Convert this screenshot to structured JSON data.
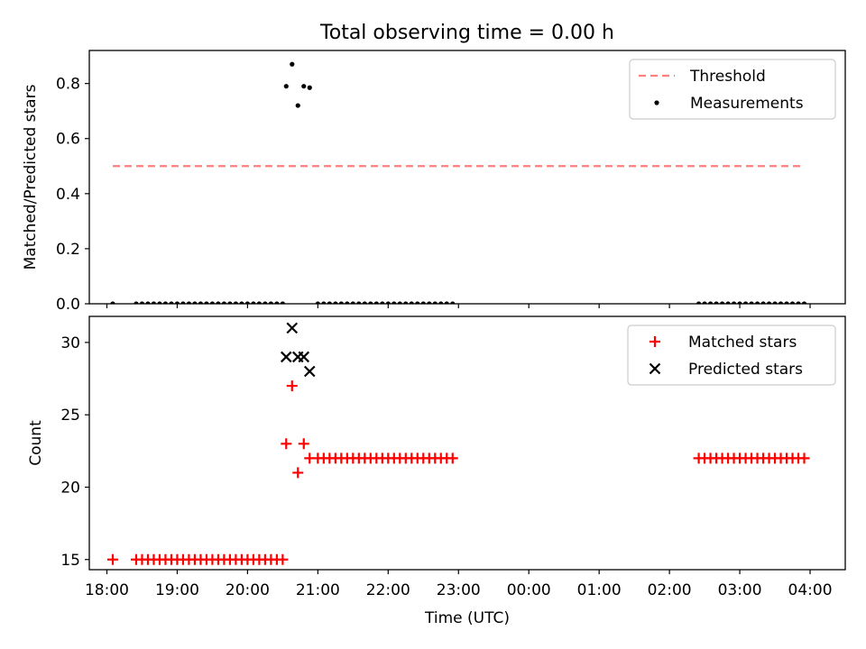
{
  "figure_title": "Total observing time = 0.00 h",
  "chart_data": [
    {
      "type": "scatter",
      "ylabel": "Matched/Predicted stars",
      "xlabel": "",
      "xlim": [
        "17:45",
        "04:30"
      ],
      "ylim": [
        0,
        0.92
      ],
      "yticks": [
        0.0,
        0.2,
        0.4,
        0.6,
        0.8
      ],
      "ytick_labels": [
        "0.0",
        "0.2",
        "0.4",
        "0.6",
        "0.8"
      ],
      "legend_position": "top-right",
      "threshold": {
        "name": "Threshold",
        "value": 0.5,
        "x_start": "18:05",
        "x_end": "03:55",
        "color": "#ff7f7f",
        "style": "dashed"
      },
      "series": [
        {
          "name": "Measurements",
          "color": "#000000",
          "marker": "dot",
          "points": [
            {
              "x": "18:05",
              "y": 0.0
            },
            {
              "x": "18:25",
              "y": 0.0
            },
            {
              "x": "18:30",
              "y": 0.0
            },
            {
              "x": "18:35",
              "y": 0.0
            },
            {
              "x": "18:40",
              "y": 0.0
            },
            {
              "x": "18:45",
              "y": 0.0
            },
            {
              "x": "18:50",
              "y": 0.0
            },
            {
              "x": "18:55",
              "y": 0.0
            },
            {
              "x": "19:00",
              "y": 0.0
            },
            {
              "x": "19:05",
              "y": 0.0
            },
            {
              "x": "19:10",
              "y": 0.0
            },
            {
              "x": "19:15",
              "y": 0.0
            },
            {
              "x": "19:20",
              "y": 0.0
            },
            {
              "x": "19:25",
              "y": 0.0
            },
            {
              "x": "19:30",
              "y": 0.0
            },
            {
              "x": "19:35",
              "y": 0.0
            },
            {
              "x": "19:40",
              "y": 0.0
            },
            {
              "x": "19:45",
              "y": 0.0
            },
            {
              "x": "19:50",
              "y": 0.0
            },
            {
              "x": "19:55",
              "y": 0.0
            },
            {
              "x": "20:00",
              "y": 0.0
            },
            {
              "x": "20:05",
              "y": 0.0
            },
            {
              "x": "20:10",
              "y": 0.0
            },
            {
              "x": "20:15",
              "y": 0.0
            },
            {
              "x": "20:20",
              "y": 0.0
            },
            {
              "x": "20:25",
              "y": 0.0
            },
            {
              "x": "20:30",
              "y": 0.0
            },
            {
              "x": "20:33",
              "y": 0.79
            },
            {
              "x": "20:38",
              "y": 0.87
            },
            {
              "x": "20:43",
              "y": 0.72
            },
            {
              "x": "20:48",
              "y": 0.79
            },
            {
              "x": "20:53",
              "y": 0.785
            },
            {
              "x": "21:00",
              "y": 0.0
            },
            {
              "x": "21:05",
              "y": 0.0
            },
            {
              "x": "21:10",
              "y": 0.0
            },
            {
              "x": "21:15",
              "y": 0.0
            },
            {
              "x": "21:20",
              "y": 0.0
            },
            {
              "x": "21:25",
              "y": 0.0
            },
            {
              "x": "21:30",
              "y": 0.0
            },
            {
              "x": "21:35",
              "y": 0.0
            },
            {
              "x": "21:40",
              "y": 0.0
            },
            {
              "x": "21:45",
              "y": 0.0
            },
            {
              "x": "21:50",
              "y": 0.0
            },
            {
              "x": "21:55",
              "y": 0.0
            },
            {
              "x": "22:00",
              "y": 0.0
            },
            {
              "x": "22:05",
              "y": 0.0
            },
            {
              "x": "22:10",
              "y": 0.0
            },
            {
              "x": "22:15",
              "y": 0.0
            },
            {
              "x": "22:20",
              "y": 0.0
            },
            {
              "x": "22:25",
              "y": 0.0
            },
            {
              "x": "22:30",
              "y": 0.0
            },
            {
              "x": "22:35",
              "y": 0.0
            },
            {
              "x": "22:40",
              "y": 0.0
            },
            {
              "x": "22:45",
              "y": 0.0
            },
            {
              "x": "22:50",
              "y": 0.0
            },
            {
              "x": "22:55",
              "y": 0.0
            },
            {
              "x": "02:25",
              "y": 0.0
            },
            {
              "x": "02:30",
              "y": 0.0
            },
            {
              "x": "02:35",
              "y": 0.0
            },
            {
              "x": "02:40",
              "y": 0.0
            },
            {
              "x": "02:45",
              "y": 0.0
            },
            {
              "x": "02:50",
              "y": 0.0
            },
            {
              "x": "02:55",
              "y": 0.0
            },
            {
              "x": "03:00",
              "y": 0.0
            },
            {
              "x": "03:05",
              "y": 0.0
            },
            {
              "x": "03:10",
              "y": 0.0
            },
            {
              "x": "03:15",
              "y": 0.0
            },
            {
              "x": "03:20",
              "y": 0.0
            },
            {
              "x": "03:25",
              "y": 0.0
            },
            {
              "x": "03:30",
              "y": 0.0
            },
            {
              "x": "03:35",
              "y": 0.0
            },
            {
              "x": "03:40",
              "y": 0.0
            },
            {
              "x": "03:45",
              "y": 0.0
            },
            {
              "x": "03:50",
              "y": 0.0
            },
            {
              "x": "03:55",
              "y": 0.0
            }
          ]
        }
      ]
    },
    {
      "type": "scatter",
      "ylabel": "Count",
      "xlabel": "Time (UTC)",
      "xlim": [
        "17:45",
        "04:30"
      ],
      "ylim": [
        14.3,
        31.8
      ],
      "yticks": [
        15,
        20,
        25,
        30
      ],
      "ytick_labels": [
        "15",
        "20",
        "25",
        "30"
      ],
      "xticks": [
        "18:00",
        "19:00",
        "20:00",
        "21:00",
        "22:00",
        "23:00",
        "00:00",
        "01:00",
        "02:00",
        "03:00",
        "04:00"
      ],
      "xtick_labels": [
        "18:00",
        "19:00",
        "20:00",
        "21:00",
        "22:00",
        "23:00",
        "00:00",
        "01:00",
        "02:00",
        "03:00",
        "04:00"
      ],
      "legend_position": "top-right",
      "series": [
        {
          "name": "Matched stars",
          "color": "#ff0000",
          "marker": "plus",
          "points": [
            {
              "x": "18:05",
              "y": 15
            },
            {
              "x": "18:25",
              "y": 15
            },
            {
              "x": "18:30",
              "y": 15
            },
            {
              "x": "18:35",
              "y": 15
            },
            {
              "x": "18:40",
              "y": 15
            },
            {
              "x": "18:45",
              "y": 15
            },
            {
              "x": "18:50",
              "y": 15
            },
            {
              "x": "18:55",
              "y": 15
            },
            {
              "x": "19:00",
              "y": 15
            },
            {
              "x": "19:05",
              "y": 15
            },
            {
              "x": "19:10",
              "y": 15
            },
            {
              "x": "19:15",
              "y": 15
            },
            {
              "x": "19:20",
              "y": 15
            },
            {
              "x": "19:25",
              "y": 15
            },
            {
              "x": "19:30",
              "y": 15
            },
            {
              "x": "19:35",
              "y": 15
            },
            {
              "x": "19:40",
              "y": 15
            },
            {
              "x": "19:45",
              "y": 15
            },
            {
              "x": "19:50",
              "y": 15
            },
            {
              "x": "19:55",
              "y": 15
            },
            {
              "x": "20:00",
              "y": 15
            },
            {
              "x": "20:05",
              "y": 15
            },
            {
              "x": "20:10",
              "y": 15
            },
            {
              "x": "20:15",
              "y": 15
            },
            {
              "x": "20:20",
              "y": 15
            },
            {
              "x": "20:25",
              "y": 15
            },
            {
              "x": "20:30",
              "y": 15
            },
            {
              "x": "20:33",
              "y": 23
            },
            {
              "x": "20:38",
              "y": 27
            },
            {
              "x": "20:43",
              "y": 21
            },
            {
              "x": "20:48",
              "y": 23
            },
            {
              "x": "20:53",
              "y": 22
            },
            {
              "x": "21:00",
              "y": 22
            },
            {
              "x": "21:05",
              "y": 22
            },
            {
              "x": "21:10",
              "y": 22
            },
            {
              "x": "21:15",
              "y": 22
            },
            {
              "x": "21:20",
              "y": 22
            },
            {
              "x": "21:25",
              "y": 22
            },
            {
              "x": "21:30",
              "y": 22
            },
            {
              "x": "21:35",
              "y": 22
            },
            {
              "x": "21:40",
              "y": 22
            },
            {
              "x": "21:45",
              "y": 22
            },
            {
              "x": "21:50",
              "y": 22
            },
            {
              "x": "21:55",
              "y": 22
            },
            {
              "x": "22:00",
              "y": 22
            },
            {
              "x": "22:05",
              "y": 22
            },
            {
              "x": "22:10",
              "y": 22
            },
            {
              "x": "22:15",
              "y": 22
            },
            {
              "x": "22:20",
              "y": 22
            },
            {
              "x": "22:25",
              "y": 22
            },
            {
              "x": "22:30",
              "y": 22
            },
            {
              "x": "22:35",
              "y": 22
            },
            {
              "x": "22:40",
              "y": 22
            },
            {
              "x": "22:45",
              "y": 22
            },
            {
              "x": "22:50",
              "y": 22
            },
            {
              "x": "22:55",
              "y": 22
            },
            {
              "x": "02:25",
              "y": 22
            },
            {
              "x": "02:30",
              "y": 22
            },
            {
              "x": "02:35",
              "y": 22
            },
            {
              "x": "02:40",
              "y": 22
            },
            {
              "x": "02:45",
              "y": 22
            },
            {
              "x": "02:50",
              "y": 22
            },
            {
              "x": "02:55",
              "y": 22
            },
            {
              "x": "03:00",
              "y": 22
            },
            {
              "x": "03:05",
              "y": 22
            },
            {
              "x": "03:10",
              "y": 22
            },
            {
              "x": "03:15",
              "y": 22
            },
            {
              "x": "03:20",
              "y": 22
            },
            {
              "x": "03:25",
              "y": 22
            },
            {
              "x": "03:30",
              "y": 22
            },
            {
              "x": "03:35",
              "y": 22
            },
            {
              "x": "03:40",
              "y": 22
            },
            {
              "x": "03:45",
              "y": 22
            },
            {
              "x": "03:50",
              "y": 22
            },
            {
              "x": "03:55",
              "y": 22
            }
          ]
        },
        {
          "name": "Predicted stars",
          "color": "#000000",
          "marker": "x",
          "points": [
            {
              "x": "20:33",
              "y": 29
            },
            {
              "x": "20:38",
              "y": 31
            },
            {
              "x": "20:43",
              "y": 29
            },
            {
              "x": "20:48",
              "y": 29
            },
            {
              "x": "20:53",
              "y": 28
            }
          ]
        }
      ]
    }
  ]
}
